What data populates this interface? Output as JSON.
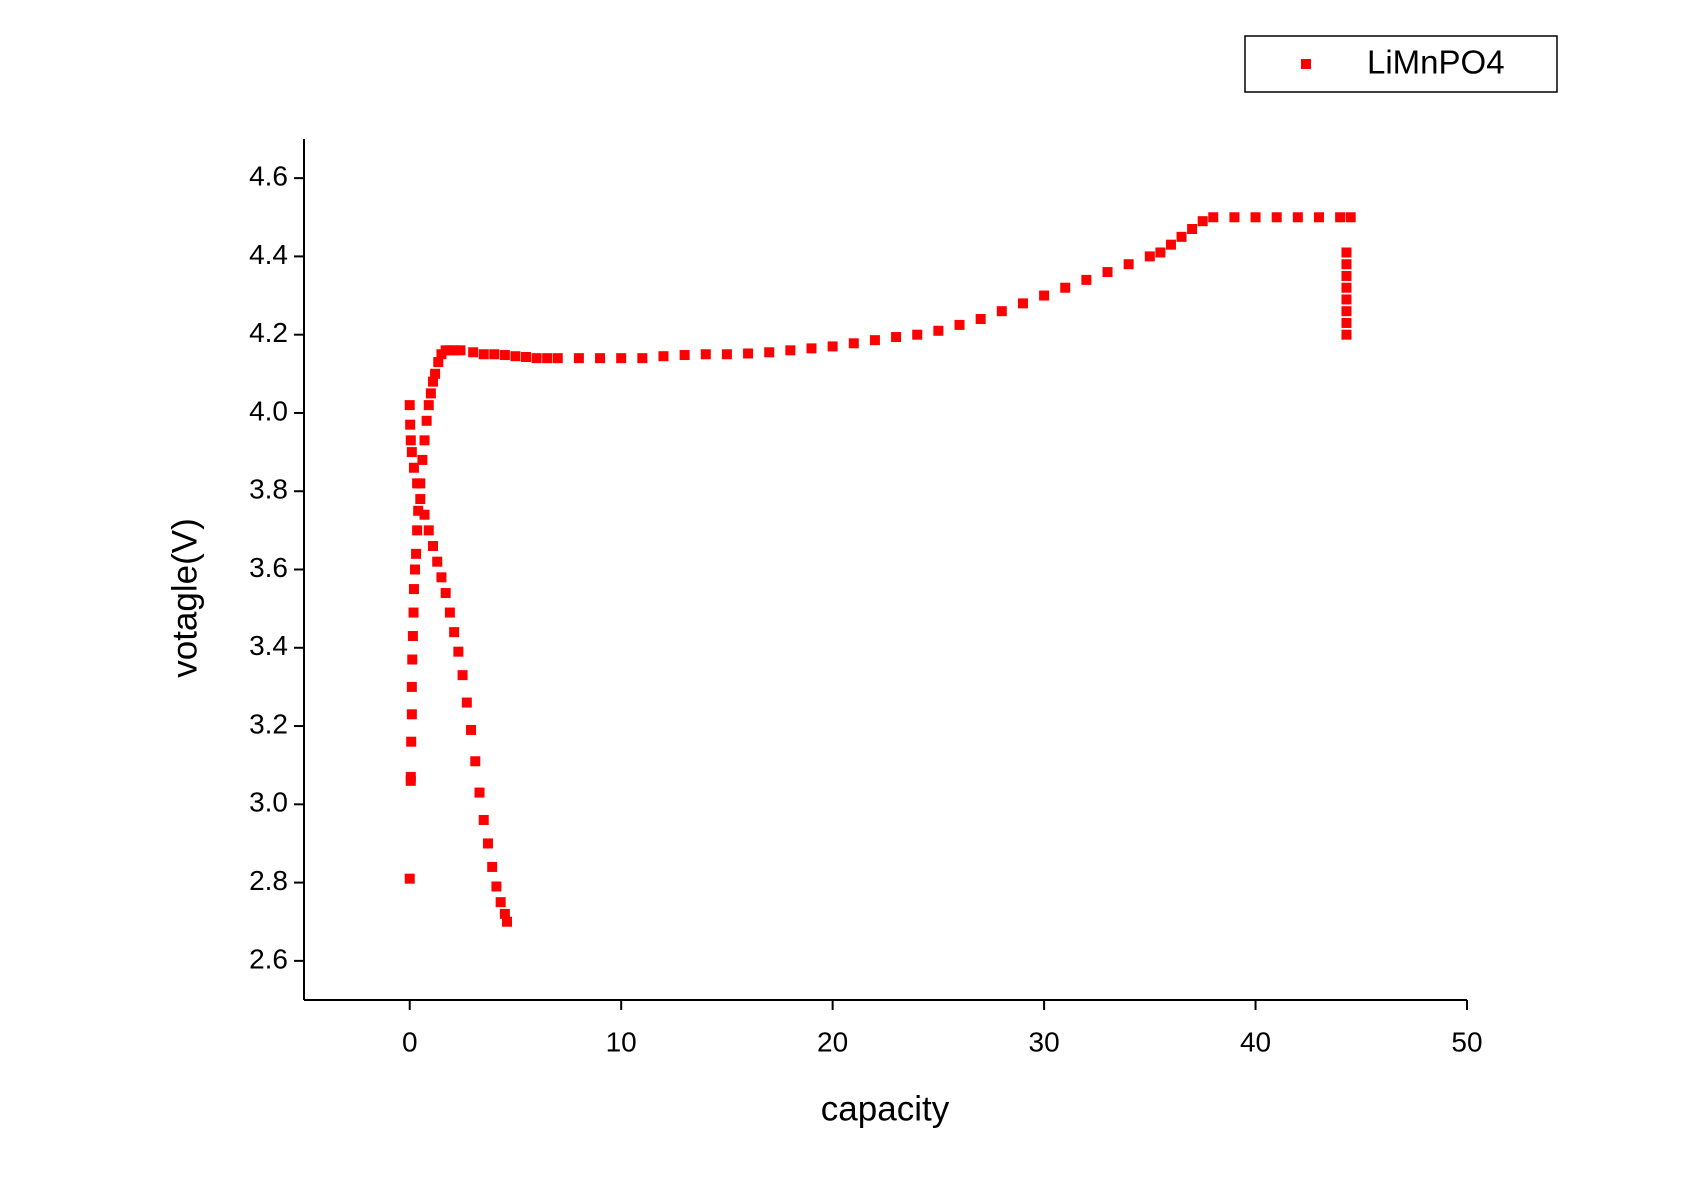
{
  "chart_data": {
    "type": "scatter",
    "xlabel": "capacity",
    "ylabel": "votagle(V)",
    "xlim": [
      -5,
      50
    ],
    "ylim": [
      2.5,
      4.7
    ],
    "xticks": [
      0,
      10,
      20,
      30,
      40,
      50
    ],
    "yticks": [
      2.6,
      2.8,
      {
        "value": 3,
        "label": "3.0"
      },
      3.2,
      3.4,
      3.6,
      3.8,
      {
        "value": 4,
        "label": "4.0"
      },
      4.2,
      4.4,
      4.6
    ],
    "legend": "top-right",
    "series": [
      {
        "name": "LiMnPO4",
        "color": "#ff0000",
        "x": [
          0,
          0.05,
          0.05,
          0.07,
          0.1,
          0.1,
          0.12,
          0.15,
          0.18,
          0.2,
          0.25,
          0.3,
          0.35,
          0.4,
          0.5,
          0.6,
          0.7,
          0.8,
          0.9,
          1.0,
          1.1,
          1.2,
          1.35,
          1.5,
          1.7,
          1.9,
          2.1,
          2.4,
          3,
          3.5,
          4,
          4.5,
          5,
          5.5,
          6,
          6.5,
          7,
          8,
          9,
          10,
          11,
          12,
          13,
          14,
          15,
          16,
          17,
          18,
          19,
          20,
          21,
          22,
          23,
          24,
          25,
          26,
          27,
          28,
          29,
          30,
          31,
          32,
          33,
          34,
          35,
          35.5,
          36,
          36.5,
          37,
          37.5,
          38,
          39,
          40,
          41,
          42,
          43,
          44,
          44.5,
          44.3,
          44.3,
          44.3,
          44.3,
          44.3,
          44.3,
          44.3,
          44.3,
          0,
          0.02,
          0.05,
          0.1,
          0.2,
          0.35,
          0.5,
          0.7,
          0.9,
          1.1,
          1.3,
          1.5,
          1.7,
          1.9,
          2.1,
          2.3,
          2.5,
          2.7,
          2.9,
          3.1,
          3.3,
          3.5,
          3.7,
          3.9,
          4.1,
          4.3,
          4.5,
          4.6
        ],
        "values": [
          2.81,
          3.06,
          3.07,
          3.16,
          3.23,
          3.3,
          3.37,
          3.43,
          3.49,
          3.55,
          3.6,
          3.64,
          3.7,
          3.75,
          3.82,
          3.88,
          3.93,
          3.98,
          4.02,
          4.05,
          4.08,
          4.1,
          4.13,
          4.15,
          4.16,
          4.16,
          4.16,
          4.16,
          4.155,
          4.15,
          4.15,
          4.148,
          4.145,
          4.143,
          4.14,
          4.14,
          4.14,
          4.14,
          4.14,
          4.14,
          4.14,
          4.145,
          4.148,
          4.15,
          4.15,
          4.152,
          4.155,
          4.16,
          4.165,
          4.17,
          4.178,
          4.186,
          4.194,
          4.2,
          4.21,
          4.225,
          4.24,
          4.26,
          4.28,
          4.3,
          4.32,
          4.34,
          4.36,
          4.38,
          4.4,
          4.41,
          4.43,
          4.45,
          4.47,
          4.49,
          4.5,
          4.5,
          4.5,
          4.5,
          4.5,
          4.5,
          4.5,
          4.5,
          4.41,
          4.38,
          4.35,
          4.32,
          4.29,
          4.26,
          4.23,
          4.2,
          4.02,
          3.97,
          3.93,
          3.9,
          3.86,
          3.82,
          3.78,
          3.74,
          3.7,
          3.66,
          3.62,
          3.58,
          3.54,
          3.49,
          3.44,
          3.39,
          3.33,
          3.26,
          3.19,
          3.11,
          3.03,
          2.96,
          2.9,
          2.84,
          2.79,
          2.75,
          2.72,
          2.7
        ]
      }
    ]
  }
}
